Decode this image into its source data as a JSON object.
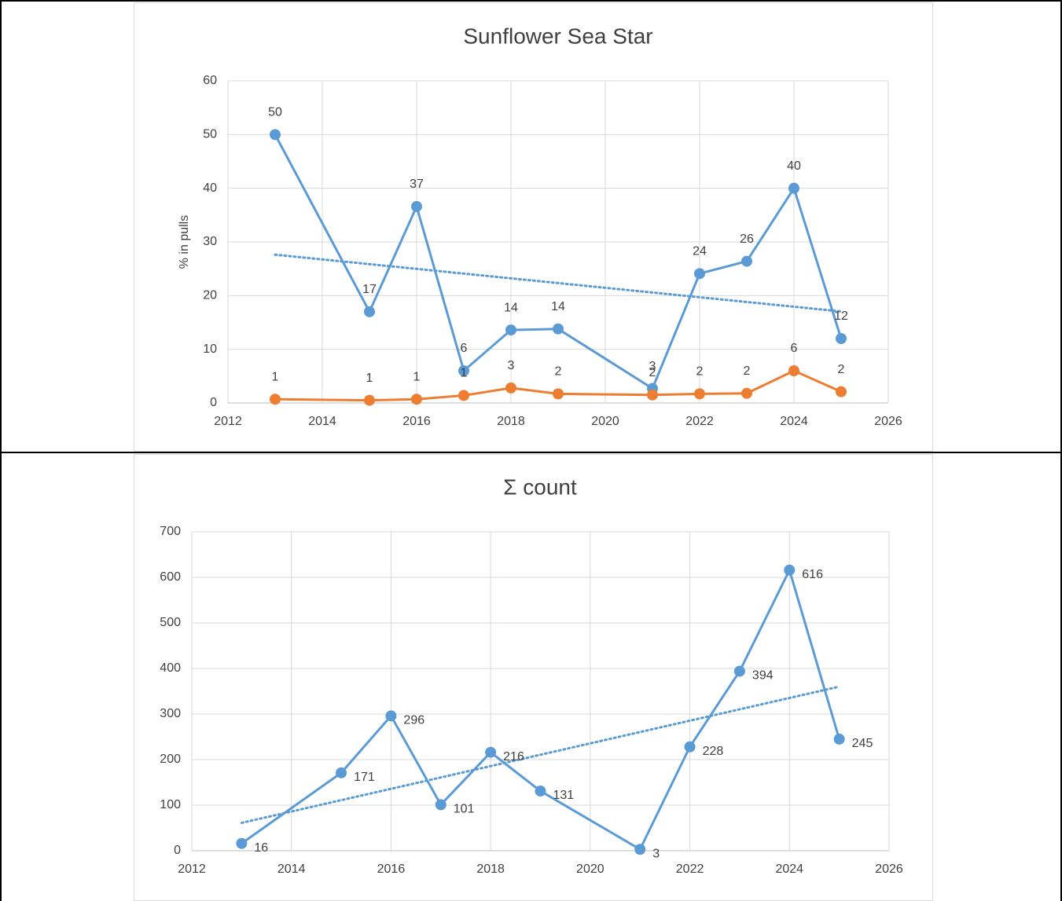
{
  "chart_data": [
    {
      "type": "line",
      "title": "Sunflower Sea Star",
      "ylabel": "% in pulls",
      "x": [
        2013,
        2015,
        2016,
        2017,
        2018,
        2019,
        2021,
        2022,
        2023,
        2024,
        2025
      ],
      "series": [
        {
          "color": "#5b9bd5",
          "trendline": true,
          "values": [
            50,
            17,
            36.6,
            6,
            13.6,
            13.8,
            2.7,
            24.1,
            26.4,
            40,
            12
          ],
          "value_labels": [
            "50",
            "17",
            "37",
            "6",
            "14",
            "14",
            "3",
            "24",
            "26",
            "40",
            "12"
          ]
        },
        {
          "color": "#ed7d31",
          "trendline": false,
          "values": [
            0.7,
            0.5,
            0.7,
            1.4,
            2.8,
            1.7,
            1.5,
            1.7,
            1.8,
            6,
            2.1
          ],
          "value_labels": [
            "1",
            "1",
            "1",
            "1",
            "3",
            "2",
            "2",
            "2",
            "2",
            "6",
            "2"
          ]
        }
      ],
      "label_position": "above",
      "xlim": [
        2012,
        2026
      ],
      "xticks": [
        2012,
        2014,
        2016,
        2018,
        2020,
        2022,
        2024,
        2026
      ],
      "ylim": [
        0,
        60
      ],
      "yticks": [
        0,
        10,
        20,
        30,
        40,
        50,
        60
      ],
      "grid": true
    },
    {
      "type": "line",
      "title": "Σ count",
      "x": [
        2013,
        2015,
        2016,
        2017,
        2018,
        2019,
        2021,
        2022,
        2023,
        2024,
        2025
      ],
      "series": [
        {
          "color": "#5b9bd5",
          "trendline": true,
          "values": [
            16,
            171,
            296,
            101,
            216,
            131,
            3,
            228,
            394,
            616,
            245
          ]
        }
      ],
      "label_position": "right",
      "xlim": [
        2012,
        2026
      ],
      "xticks": [
        2012,
        2014,
        2016,
        2018,
        2020,
        2022,
        2024,
        2026
      ],
      "ylim": [
        0,
        700
      ],
      "yticks": [
        0,
        100,
        200,
        300,
        400,
        500,
        600,
        700
      ],
      "grid": true
    }
  ]
}
